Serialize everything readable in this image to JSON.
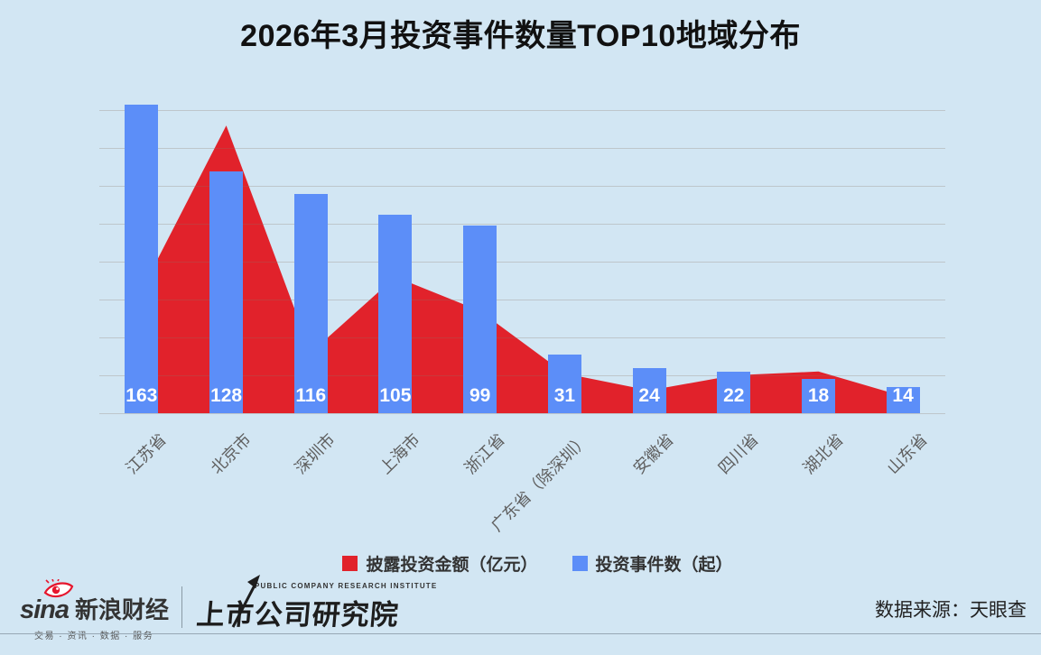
{
  "title": "2026年3月投资事件数量TOP10地域分布",
  "chart_data": {
    "type": "combo: area + bar",
    "categories": [
      "江苏省",
      "北京市",
      "深圳市",
      "上海市",
      "浙江省",
      "广东省（除深圳）",
      "安徽省",
      "四川省",
      "湖北省",
      "山东省"
    ],
    "series": [
      {
        "name": "披露投资金额（亿元）",
        "type": "area",
        "color": "#e1222b",
        "values": [
          65,
          152,
          32,
          72,
          54,
          21,
          12,
          20,
          22,
          9
        ],
        "note": "no data labels shown in image; values estimated from pixel heights"
      },
      {
        "name": "投资事件数（起）",
        "type": "bar",
        "color": "#5c8ef8",
        "values": [
          163,
          128,
          116,
          105,
          99,
          31,
          24,
          22,
          18,
          14
        ],
        "data_labels": true
      }
    ],
    "xlabel": "",
    "ylabel": "",
    "y_axis_labels_visible": false,
    "ylim": [
      0,
      175
    ],
    "grid": {
      "horizontal": true,
      "step": 20,
      "max": 160
    },
    "legend_position": "bottom-center"
  },
  "footer": {
    "sina_brand": "sina",
    "sina_name": "新浪财经",
    "sina_tagline": "交易 · 资讯 · 数据 · 服务",
    "institute_subtitle": "PUBLIC COMPANY RESEARCH INSTITUTE",
    "institute_name": "上市公司研究院",
    "source": "数据来源：天眼查"
  },
  "colors": {
    "background": "#d2e6f3",
    "bar": "#5c8ef8",
    "area": "#e1222b",
    "title_text": "#111111",
    "axis_label": "#5f5f5f",
    "legend_text": "#333333",
    "footer_text": "#222222",
    "sina_red": "#e6162d",
    "grid_line": "rgba(140,115,100,0.28)",
    "separator_line": "#97a8b4"
  }
}
